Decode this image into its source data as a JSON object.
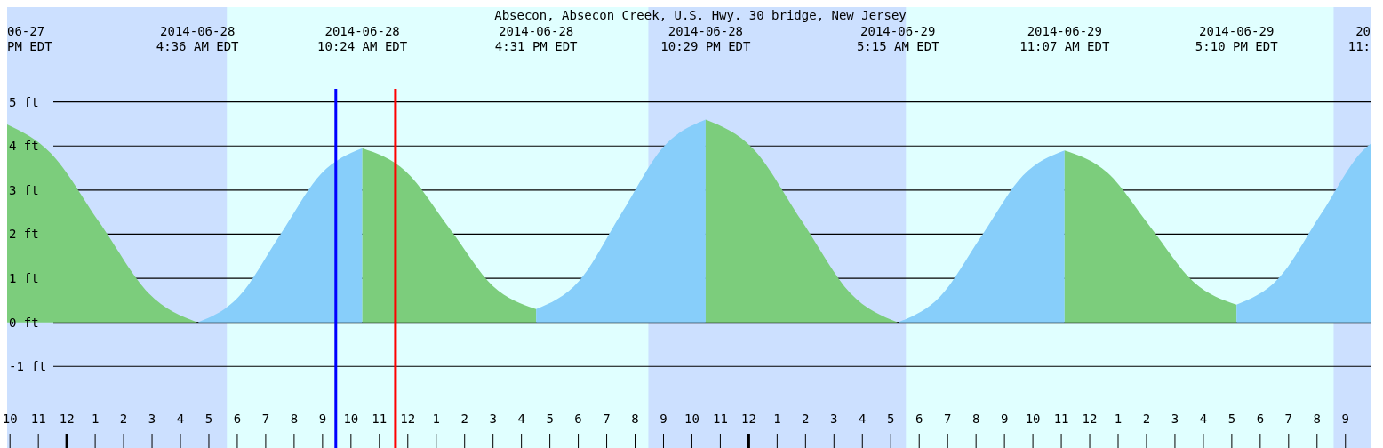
{
  "chart_data": {
    "type": "area",
    "title": "Absecon, Absecon Creek, U.S. Hwy. 30 bridge, New Jersey",
    "series": [
      {
        "color": "#7ccd7c",
        "x": [
          "2014-06-27T21:54",
          "2014-06-27T23:26",
          "2014-06-28T01:10",
          "2014-06-28T02:53",
          "2014-06-28T04:36"
        ],
        "values": [
          4.49,
          3.84,
          2.25,
          0.66,
          0.0
        ]
      },
      {
        "color": "#87cefa",
        "x": [
          "2014-06-28T04:36",
          "2014-06-28T06:03",
          "2014-06-28T07:30",
          "2014-06-28T08:57",
          "2014-06-28T10:24"
        ],
        "values": [
          0.0,
          0.58,
          1.98,
          3.37,
          3.95
        ]
      },
      {
        "color": "#7ccd7c",
        "x": [
          "2014-06-28T10:24",
          "2014-06-28T11:56",
          "2014-06-28T13:28",
          "2014-06-28T14:59",
          "2014-06-28T16:31"
        ],
        "values": [
          3.95,
          3.42,
          2.13,
          0.83,
          0.3
        ]
      },
      {
        "color": "#87cefa",
        "x": [
          "2014-06-28T16:31",
          "2014-06-28T18:01",
          "2014-06-28T19:30",
          "2014-06-28T20:59",
          "2014-06-28T22:29"
        ],
        "values": [
          0.3,
          0.93,
          2.45,
          3.97,
          4.6
        ]
      },
      {
        "color": "#7ccd7c",
        "x": [
          "2014-06-28T22:29",
          "2014-06-29T00:10",
          "2014-06-29T01:52",
          "2014-06-29T03:34",
          "2014-06-29T05:15"
        ],
        "values": [
          4.6,
          3.93,
          2.3,
          0.67,
          0.0
        ]
      },
      {
        "color": "#87cefa",
        "x": [
          "2014-06-29T05:15",
          "2014-06-29T06:43",
          "2014-06-29T08:11",
          "2014-06-29T09:39",
          "2014-06-29T11:07"
        ],
        "values": [
          0.0,
          0.57,
          1.95,
          3.33,
          3.9
        ]
      },
      {
        "color": "#7ccd7c",
        "x": [
          "2014-06-29T11:07",
          "2014-06-29T12:38",
          "2014-06-29T14:09",
          "2014-06-29T15:40",
          "2014-06-29T17:10"
        ],
        "values": [
          3.9,
          3.39,
          2.15,
          0.91,
          0.4
        ]
      },
      {
        "color": "#87cefa",
        "x": [
          "2014-06-29T17:10",
          "2014-06-29T18:39",
          "2014-06-29T20:08",
          "2014-06-29T21:37",
          "2014-06-29T21:53"
        ],
        "values": [
          0.4,
          1.0,
          2.45,
          3.9,
          4.05
        ]
      }
    ],
    "xlim": [
      "2014-06-27T21:54",
      "2014-06-29T21:53"
    ],
    "ylim": [
      -2.85,
      7.15
    ],
    "yticks": [
      {
        "value": -1,
        "label": "-1 ft"
      },
      {
        "value": 0,
        "label": "0 ft"
      },
      {
        "value": 1,
        "label": "1 ft"
      },
      {
        "value": 2,
        "label": "2 ft"
      },
      {
        "value": 3,
        "label": "3 ft"
      },
      {
        "value": 4,
        "label": "4 ft"
      },
      {
        "value": 5,
        "label": "5 ft"
      }
    ],
    "xticks": [
      {
        "value": "2014-06-27T22:00",
        "label": "10"
      },
      {
        "value": "2014-06-27T23:00",
        "label": "11"
      },
      {
        "value": "2014-06-28T00:00",
        "label": "12"
      },
      {
        "value": "2014-06-28T01:00",
        "label": "1"
      },
      {
        "value": "2014-06-28T02:00",
        "label": "2"
      },
      {
        "value": "2014-06-28T03:00",
        "label": "3"
      },
      {
        "value": "2014-06-28T04:00",
        "label": "4"
      },
      {
        "value": "2014-06-28T05:00",
        "label": "5"
      },
      {
        "value": "2014-06-28T06:00",
        "label": "6"
      },
      {
        "value": "2014-06-28T07:00",
        "label": "7"
      },
      {
        "value": "2014-06-28T08:00",
        "label": "8"
      },
      {
        "value": "2014-06-28T09:00",
        "label": "9"
      },
      {
        "value": "2014-06-28T10:00",
        "label": "10"
      },
      {
        "value": "2014-06-28T11:00",
        "label": "11"
      },
      {
        "value": "2014-06-28T12:00",
        "label": "12"
      },
      {
        "value": "2014-06-28T13:00",
        "label": "1"
      },
      {
        "value": "2014-06-28T14:00",
        "label": "2"
      },
      {
        "value": "2014-06-28T15:00",
        "label": "3"
      },
      {
        "value": "2014-06-28T16:00",
        "label": "4"
      },
      {
        "value": "2014-06-28T17:00",
        "label": "5"
      },
      {
        "value": "2014-06-28T18:00",
        "label": "6"
      },
      {
        "value": "2014-06-28T19:00",
        "label": "7"
      },
      {
        "value": "2014-06-28T20:00",
        "label": "8"
      },
      {
        "value": "2014-06-28T21:00",
        "label": "9"
      },
      {
        "value": "2014-06-28T22:00",
        "label": "10"
      },
      {
        "value": "2014-06-28T23:00",
        "label": "11"
      },
      {
        "value": "2014-06-29T00:00",
        "label": "12"
      },
      {
        "value": "2014-06-29T01:00",
        "label": "1"
      },
      {
        "value": "2014-06-29T02:00",
        "label": "2"
      },
      {
        "value": "2014-06-29T03:00",
        "label": "3"
      },
      {
        "value": "2014-06-29T04:00",
        "label": "4"
      },
      {
        "value": "2014-06-29T05:00",
        "label": "5"
      },
      {
        "value": "2014-06-29T06:00",
        "label": "6"
      },
      {
        "value": "2014-06-29T07:00",
        "label": "7"
      },
      {
        "value": "2014-06-29T08:00",
        "label": "8"
      },
      {
        "value": "2014-06-29T09:00",
        "label": "9"
      },
      {
        "value": "2014-06-29T10:00",
        "label": "10"
      },
      {
        "value": "2014-06-29T11:00",
        "label": "11"
      },
      {
        "value": "2014-06-29T12:00",
        "label": "12"
      },
      {
        "value": "2014-06-29T13:00",
        "label": "1"
      },
      {
        "value": "2014-06-29T14:00",
        "label": "2"
      },
      {
        "value": "2014-06-29T15:00",
        "label": "3"
      },
      {
        "value": "2014-06-29T16:00",
        "label": "4"
      },
      {
        "value": "2014-06-29T17:00",
        "label": "5"
      },
      {
        "value": "2014-06-29T18:00",
        "label": "6"
      },
      {
        "value": "2014-06-29T19:00",
        "label": "7"
      },
      {
        "value": "2014-06-29T20:00",
        "label": "8"
      },
      {
        "value": "2014-06-29T21:00",
        "label": "9"
      }
    ],
    "grid": "y",
    "bands": [
      {
        "axis": "x",
        "from": "2014-06-27T21:54",
        "to": "2014-06-28T05:38",
        "color": "#cce0ff"
      },
      {
        "axis": "x",
        "from": "2014-06-28T20:28",
        "to": "2014-06-29T05:32",
        "color": "#cce0ff"
      },
      {
        "axis": "x",
        "from": "2014-06-29T20:35",
        "to": "2014-06-29T21:53",
        "color": "#cce0ff"
      }
    ],
    "ref_lines": [
      {
        "axis": "x",
        "value": "2014-06-28T09:28",
        "color": "#0000ff"
      },
      {
        "axis": "x",
        "value": "2014-06-28T11:34",
        "color": "#ff0000"
      }
    ],
    "annotations": [
      "06-27\nPM EDT",
      "2014-06-28\n4:36 AM EDT",
      "2014-06-28\n10:24 AM EDT",
      "2014-06-28\n4:31 PM EDT",
      "2014-06-28\n10:29 PM EDT",
      "2014-06-29\n5:15 AM EDT",
      "2014-06-29\n11:07 AM EDT",
      "2014-06-29\n5:10 PM EDT",
      "20\n11:"
    ]
  }
}
